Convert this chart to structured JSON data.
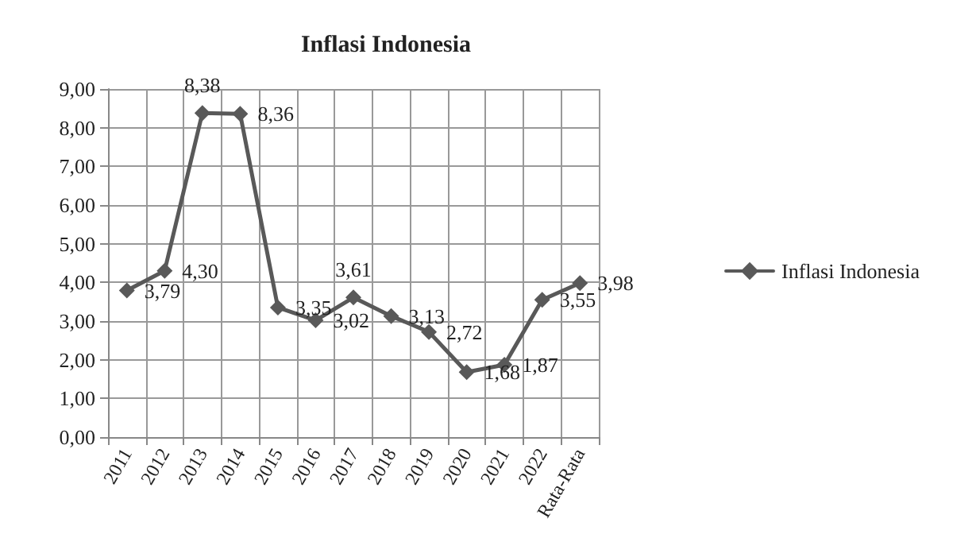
{
  "chart_data": {
    "type": "line",
    "title": "Inflasi Indonesia",
    "categories": [
      "2011",
      "2012",
      "2013",
      "2014",
      "2015",
      "2016",
      "2017",
      "2018",
      "2019",
      "2020",
      "2021",
      "2022",
      "Rata-Rata"
    ],
    "series": [
      {
        "name": "Inflasi Indonesia",
        "color": "#595959",
        "values": [
          3.79,
          4.3,
          8.38,
          8.36,
          3.35,
          3.02,
          3.61,
          3.13,
          2.72,
          1.68,
          1.87,
          3.55,
          3.98
        ],
        "value_labels": [
          "3,79",
          "4,30",
          "8,38",
          "8,36",
          "3,35",
          "3,02",
          "3,61",
          "3,13",
          "2,72",
          "1,68",
          "1,87",
          "3,55",
          "3,98"
        ]
      }
    ],
    "ylim": [
      0,
      9
    ],
    "yticks": [
      {
        "value": 0,
        "label": "0,00"
      },
      {
        "value": 1,
        "label": "1,00"
      },
      {
        "value": 2,
        "label": "2,00"
      },
      {
        "value": 3,
        "label": "3,00"
      },
      {
        "value": 4,
        "label": "4,00"
      },
      {
        "value": 5,
        "label": "5,00"
      },
      {
        "value": 6,
        "label": "6,00"
      },
      {
        "value": 7,
        "label": "7,00"
      },
      {
        "value": 8,
        "label": "8,00"
      },
      {
        "value": 9,
        "label": "9,00"
      }
    ],
    "grid": true,
    "legend": "right",
    "marker": "diamond",
    "line_style": "solid"
  }
}
